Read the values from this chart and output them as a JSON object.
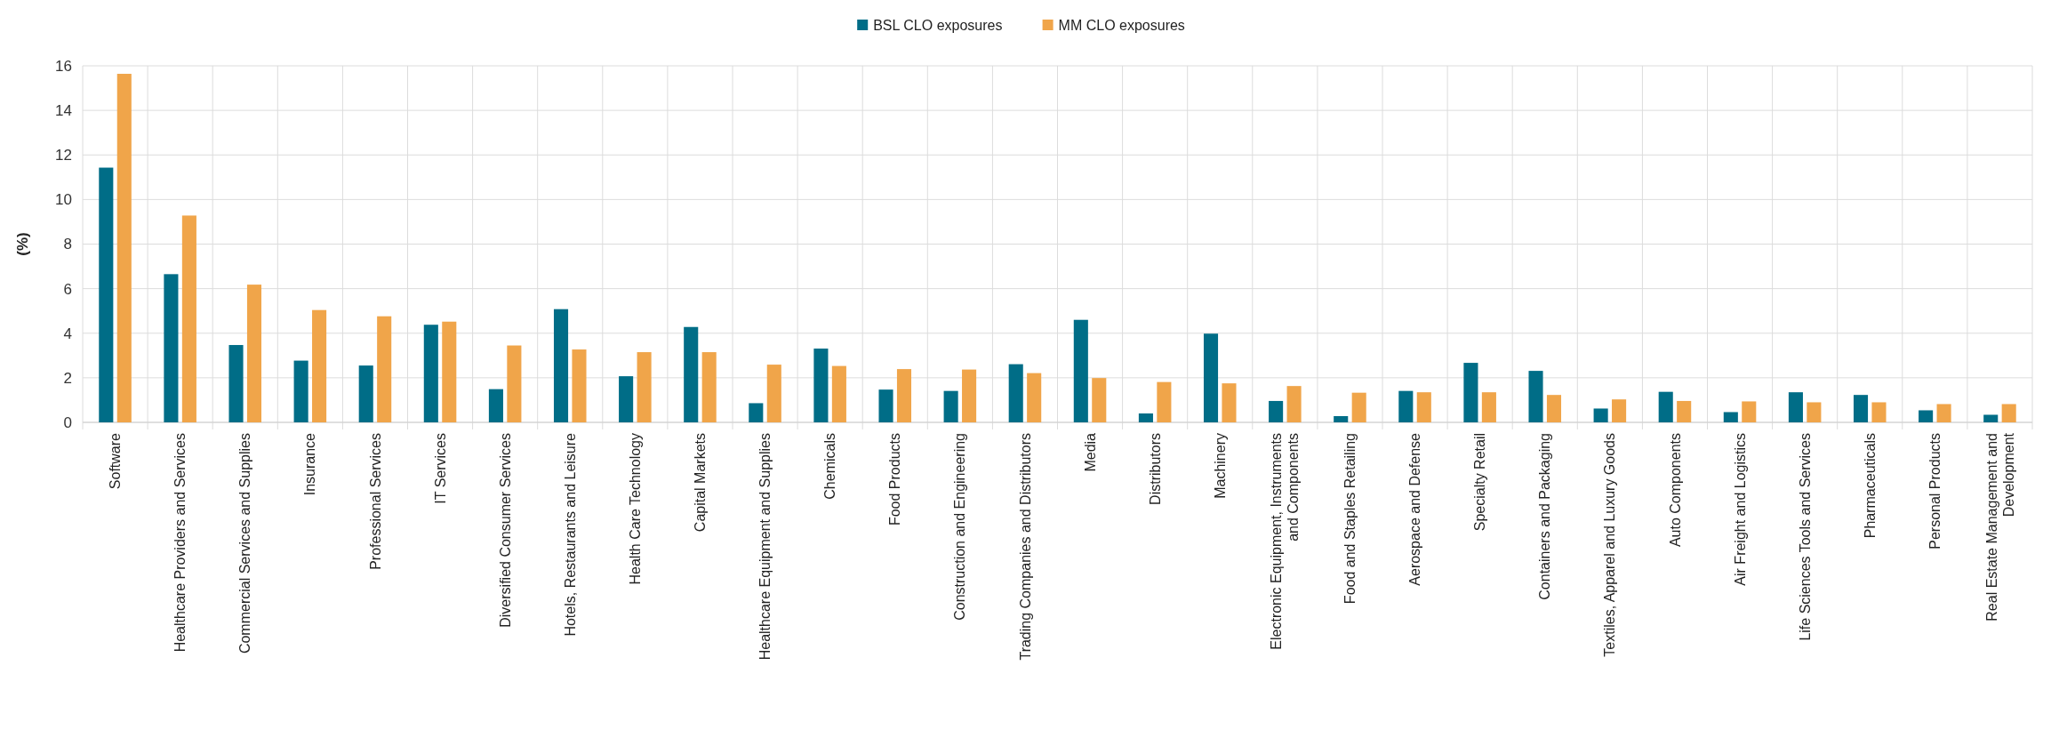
{
  "chart_data": {
    "type": "bar",
    "ylabel": "(%)",
    "categories": [
      "Software",
      "Healthcare Providers and Services",
      "Commercial Services and Supplies",
      "Insurance",
      "Professional Services",
      "IT Services",
      "Diversified Consumer Services",
      "Hotels, Restaurants and Leisure",
      "Health Care Technology",
      "Capital Markets",
      "Healthcare Equipment and Supplies",
      "Chemicals",
      "Food Products",
      "Construction and Engineering",
      "Trading Companies and Distributors",
      "Media",
      "Distributors",
      "Machinery",
      "Electronic Equipment, Instruments and Components",
      "Food and Staples Retailing",
      "Aerospace and Defense",
      "Specialty Retail",
      "Containers and Packaging",
      "Textiles, Apparel and Luxury Goods",
      "Auto Components",
      "Air Freight and Logistics",
      "Life Sciences Tools and Services",
      "Pharmaceuticals",
      "Personal Products",
      "Real Estate Management and Development"
    ],
    "series": [
      {
        "name": "BSL CLO exposures",
        "color": "#006d87",
        "values": [
          11.43,
          6.65,
          3.47,
          2.77,
          2.55,
          4.38,
          1.49,
          5.08,
          2.07,
          4.28,
          0.86,
          3.31,
          1.47,
          1.41,
          2.61,
          4.6,
          0.4,
          3.98,
          0.96,
          0.28,
          1.41,
          2.67,
          2.31,
          0.62,
          1.37,
          0.46,
          1.35,
          1.23,
          0.54,
          0.34
        ]
      },
      {
        "name": "MM CLO exposures",
        "color": "#f0a54a",
        "values": [
          15.64,
          9.28,
          6.18,
          5.04,
          4.76,
          4.52,
          3.45,
          3.27,
          3.15,
          3.15,
          2.59,
          2.53,
          2.39,
          2.37,
          2.21,
          1.99,
          1.81,
          1.75,
          1.63,
          1.33,
          1.35,
          1.35,
          1.23,
          1.03,
          0.96,
          0.94,
          0.9,
          0.9,
          0.82,
          0.82
        ]
      }
    ],
    "ylim": [
      0,
      16
    ],
    "yticks": [
      0,
      2,
      4,
      6,
      8,
      10,
      12,
      14,
      16
    ],
    "grid": true,
    "legend": "top"
  }
}
